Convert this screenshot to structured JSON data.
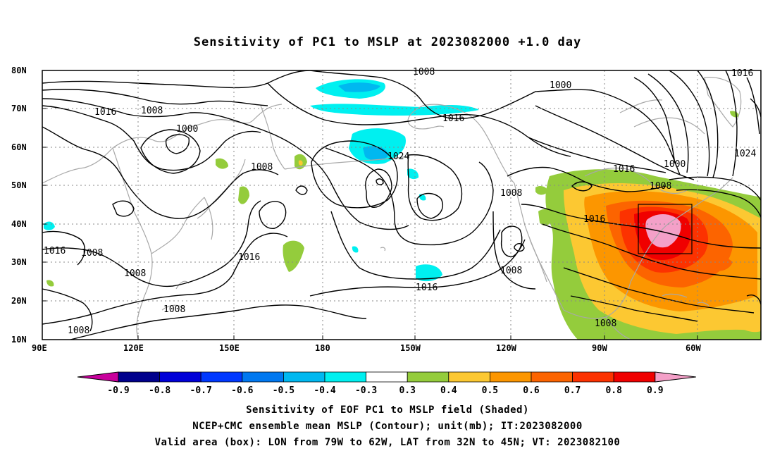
{
  "title": "Sensitivity of PC1 to MSLP at 2023082000 +1.0 day",
  "axes": {
    "lat_labels": [
      "80N",
      "70N",
      "60N",
      "50N",
      "40N",
      "30N",
      "20N",
      "10N"
    ],
    "lon_labels": [
      "90E",
      "120E",
      "150E",
      "180",
      "150W",
      "120W",
      "90W",
      "60W"
    ]
  },
  "contour_labels": [
    "1008",
    "1016",
    "1016",
    "1008",
    "1000",
    "1016",
    "1008",
    "1000",
    "1016",
    "1024",
    "1008",
    "1016",
    "1000",
    "1008",
    "1024",
    "1016",
    "1016",
    "1008",
    "1008",
    "1016",
    "1008",
    "1008",
    "1008",
    "1008",
    "1008"
  ],
  "colorbar": {
    "labels": [
      "-0.9",
      "-0.8",
      "-0.7",
      "-0.6",
      "-0.5",
      "-0.4",
      "-0.3",
      "0.3",
      "0.4",
      "0.5",
      "0.6",
      "0.7",
      "0.8",
      "0.9"
    ],
    "colors": [
      "#c8009c",
      "#00008c",
      "#0000d8",
      "#0038ff",
      "#0078f0",
      "#00b8f0",
      "#00f0f0",
      "#ffffff",
      "#94cc3c",
      "#fcc832",
      "#fc9600",
      "#fc6400",
      "#fc3200",
      "#f00000",
      "#f4a0c8"
    ]
  },
  "footer": {
    "line1": "Sensitivity of EOF PC1 to MSLP field (Shaded)",
    "line2": "NCEP+CMC ensemble mean MSLP (Contour); unit(mb); IT:2023082000",
    "line3": "Valid area (box): LON from 79W to 62W, LAT from 32N to 45N; VT: 2023082100"
  }
}
